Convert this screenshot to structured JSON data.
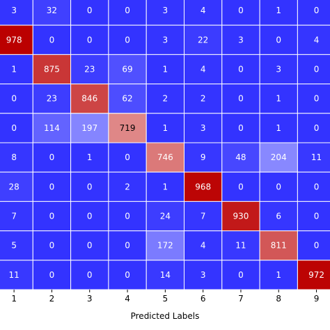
{
  "chart_data": {
    "type": "heatmap",
    "xlabel": "Predicted Labels",
    "ylabel": "",
    "x_tick_labels": [
      "1",
      "2",
      "3",
      "4",
      "5",
      "6",
      "7",
      "8",
      "9"
    ],
    "matrix": [
      [
        3,
        32,
        0,
        0,
        3,
        4,
        0,
        1,
        0
      ],
      [
        978,
        0,
        0,
        0,
        3,
        22,
        3,
        0,
        4
      ],
      [
        1,
        875,
        23,
        69,
        1,
        4,
        0,
        3,
        0
      ],
      [
        0,
        23,
        846,
        62,
        2,
        2,
        0,
        1,
        0
      ],
      [
        0,
        114,
        197,
        719,
        1,
        3,
        0,
        1,
        0
      ],
      [
        8,
        0,
        1,
        0,
        746,
        9,
        48,
        204,
        11
      ],
      [
        28,
        0,
        0,
        2,
        1,
        968,
        0,
        0,
        0
      ],
      [
        7,
        0,
        0,
        0,
        24,
        7,
        930,
        6,
        0
      ],
      [
        5,
        0,
        0,
        0,
        172,
        4,
        11,
        811,
        0
      ],
      [
        11,
        0,
        0,
        0,
        14,
        3,
        0,
        1,
        972
      ]
    ],
    "colormap": "bwr",
    "value_range": [
      0,
      978
    ],
    "colors": {
      "low": "#3333ff",
      "mid": "#ffffff",
      "high": "#bb0000",
      "grid_line": "#ffffff"
    },
    "cell_labels_shown": true
  }
}
